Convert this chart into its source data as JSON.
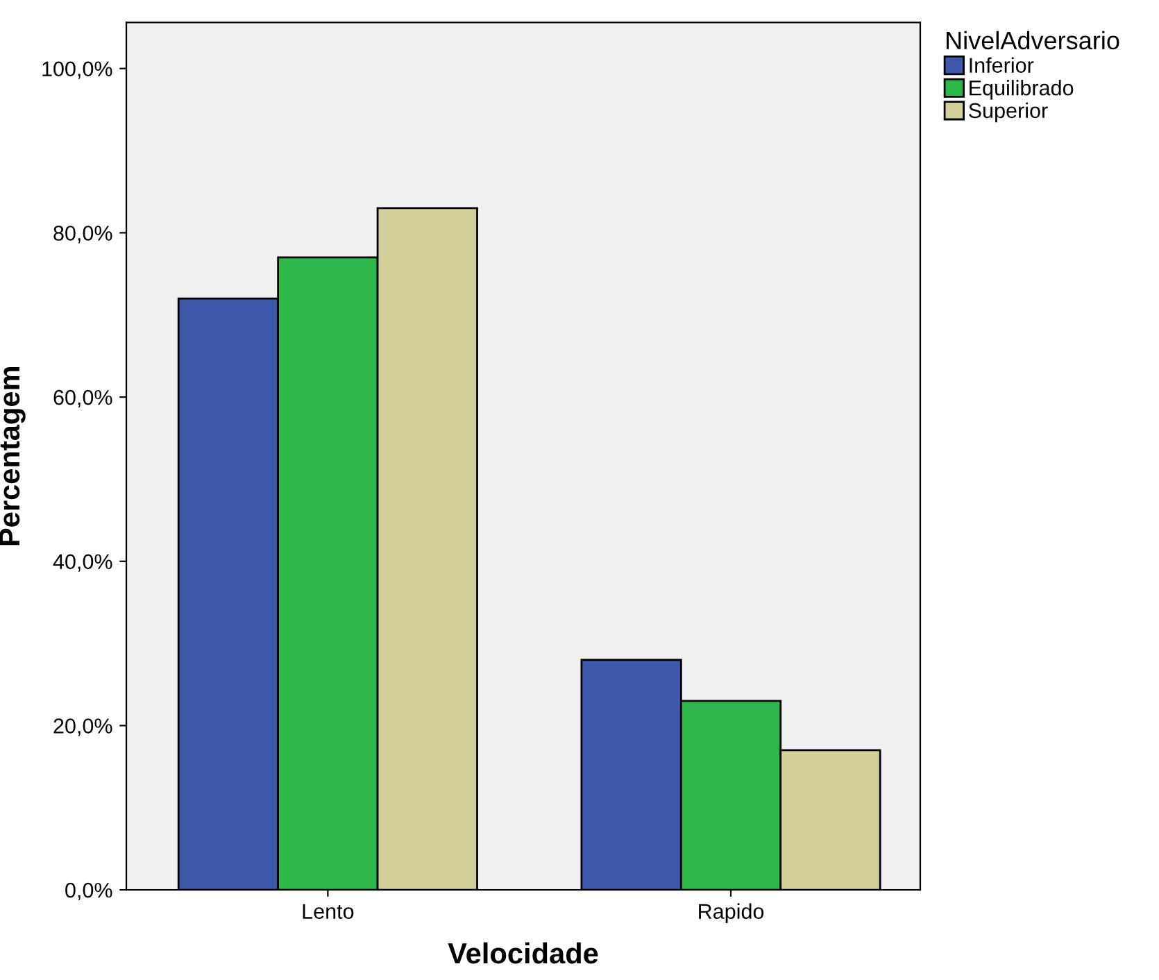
{
  "chart_data": {
    "type": "bar",
    "xlabel": "Velocidade",
    "ylabel": "Percentagem",
    "legend_title": "NivelAdversario",
    "categories": [
      "Lento",
      "Rapido"
    ],
    "series": [
      {
        "name": "Inferior",
        "color": "#3e58ac",
        "values": [
          72,
          28
        ]
      },
      {
        "name": "Equilibrado",
        "color": "#2fb84a",
        "values": [
          77,
          23
        ]
      },
      {
        "name": "Superior",
        "color": "#d4d09a",
        "values": [
          83,
          17
        ]
      }
    ],
    "ylim": [
      0,
      105.6
    ],
    "yticks": [
      {
        "value": 0,
        "label": "0,0%"
      },
      {
        "value": 20,
        "label": "20,0%"
      },
      {
        "value": 40,
        "label": "40,0%"
      },
      {
        "value": 60,
        "label": "60,0%"
      },
      {
        "value": 80,
        "label": "80,0%"
      },
      {
        "value": 100,
        "label": "100,0%"
      }
    ],
    "legend": "top right",
    "grid": false
  }
}
